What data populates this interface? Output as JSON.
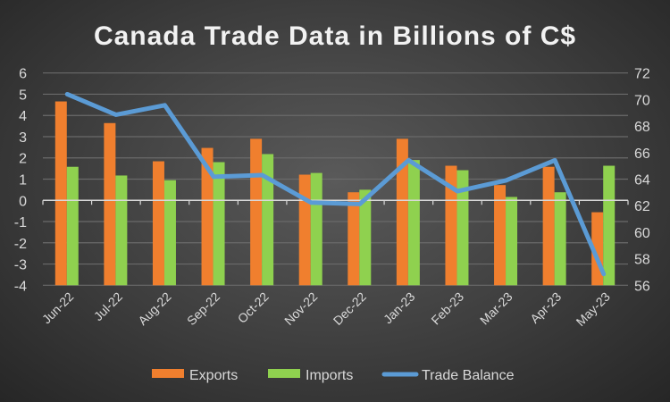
{
  "chart_data": {
    "type": "bar",
    "title": "Canada Trade Data in Billions of C$",
    "categories": [
      "Jun-22",
      "Jul-22",
      "Aug-22",
      "Sep-22",
      "Oct-22",
      "Nov-22",
      "Dec-22",
      "Jan-23",
      "Feb-23",
      "Mar-23",
      "Apr-23",
      "May-23"
    ],
    "series": [
      {
        "name": "Exports",
        "type": "bar",
        "axis": "left",
        "color": "#f07f2e",
        "values": [
          4.66,
          3.64,
          1.84,
          2.47,
          2.9,
          1.21,
          0.38,
          2.9,
          1.63,
          0.72,
          1.58,
          -0.56
        ]
      },
      {
        "name": "Imports",
        "type": "bar",
        "axis": "left",
        "color": "#8fd14f",
        "values": [
          1.58,
          1.17,
          0.95,
          1.8,
          2.18,
          1.29,
          0.5,
          1.9,
          1.42,
          0.16,
          0.38,
          1.63
        ]
      },
      {
        "name": "Trade Balance",
        "type": "line",
        "axis": "right",
        "color": "#5b9bd5",
        "values": [
          70.4,
          68.85,
          69.57,
          64.18,
          64.3,
          62.23,
          62.12,
          65.42,
          63.09,
          63.9,
          65.42,
          56.85
        ]
      }
    ],
    "ylim_left": [
      -4,
      6
    ],
    "yticks_left": [
      "6",
      "5",
      "4",
      "3",
      "2",
      "1",
      "0",
      "-1",
      "-2",
      "-3",
      "-4"
    ],
    "ylim_right": [
      56,
      72
    ],
    "yticks_right": [
      "72",
      "70",
      "68",
      "66",
      "64",
      "62",
      "60",
      "58",
      "56"
    ],
    "grid": true,
    "legend": "bottom"
  }
}
